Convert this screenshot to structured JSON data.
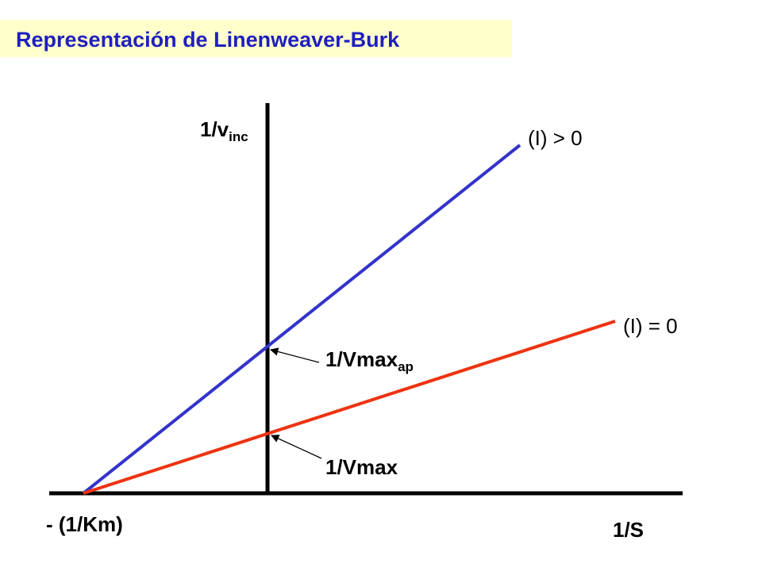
{
  "header": {
    "title": "Representación  de Linenweaver-Burk"
  },
  "axes": {
    "y_label": {
      "main": "1/v",
      "sub": "inc"
    },
    "x_label": "1/S",
    "x_intercept_label": "- (1/Km)"
  },
  "lines": [
    {
      "label": "(I) > 0",
      "color": "#3333cc"
    },
    {
      "label": "(I) = 0",
      "color": "#ee3311"
    }
  ],
  "annotations": [
    {
      "main": "1/Vmax",
      "sub": "ap"
    },
    {
      "main": "1/Vmax"
    }
  ]
}
